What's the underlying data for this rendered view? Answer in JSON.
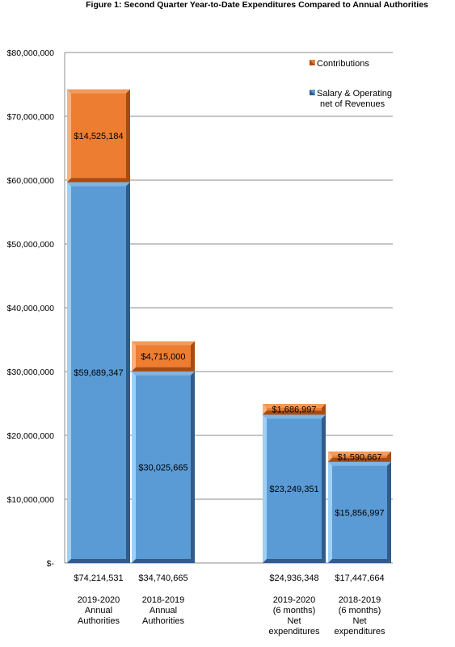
{
  "chart_data": {
    "type": "bar",
    "stacked": true,
    "title": "Figure 1: Second Quarter Year-to-Date Expenditures Compared to Annual Authorities",
    "ylim": [
      0,
      80000000
    ],
    "yticks": [
      {
        "v": 0,
        "label": "$-"
      },
      {
        "v": 10000000,
        "label": "$10,000,000"
      },
      {
        "v": 20000000,
        "label": "$20,000,000"
      },
      {
        "v": 30000000,
        "label": "$30,000,000"
      },
      {
        "v": 40000000,
        "label": "$40,000,000"
      },
      {
        "v": 50000000,
        "label": "$50,000,000"
      },
      {
        "v": 60000000,
        "label": "$60,000,000"
      },
      {
        "v": 70000000,
        "label": "$70,000,000"
      },
      {
        "v": 80000000,
        "label": "$80,000,000"
      }
    ],
    "grid": true,
    "legend_position": "top-right",
    "categories": [
      {
        "lines": [
          "2019-2020",
          "Annual",
          "Authorities"
        ],
        "total": "$74,214,531"
      },
      {
        "lines": [
          "2018-2019",
          "Annual",
          "Authorities"
        ],
        "total": "$34,740,665"
      },
      {
        "lines": [
          "2019-2020",
          "(6 months)",
          "Net",
          "expenditures"
        ],
        "total": "$24,936,348"
      },
      {
        "lines": [
          "2018-2019",
          "(6 months)",
          "Net",
          "expenditures"
        ],
        "total": "$17,447,664"
      }
    ],
    "series": [
      {
        "name": "Salary & Operating net of Revenues",
        "legend_lines": [
          "Salary & Operating",
          "net of Revenues"
        ],
        "color": "#5b9bd5",
        "values": [
          59689347,
          30025665,
          23249351,
          15856997
        ],
        "labels": [
          "$59,689,347",
          "$30,025,665",
          "$23,249,351",
          "$15,856,997"
        ]
      },
      {
        "name": "Contributions",
        "legend_lines": [
          "Contributions"
        ],
        "color": "#ed7d31",
        "values": [
          14525184,
          4715000,
          1686997,
          1590667
        ],
        "labels": [
          "$14,525,184",
          "$4,715,000",
          "$1,686,997",
          "$1,590,667"
        ]
      }
    ]
  }
}
